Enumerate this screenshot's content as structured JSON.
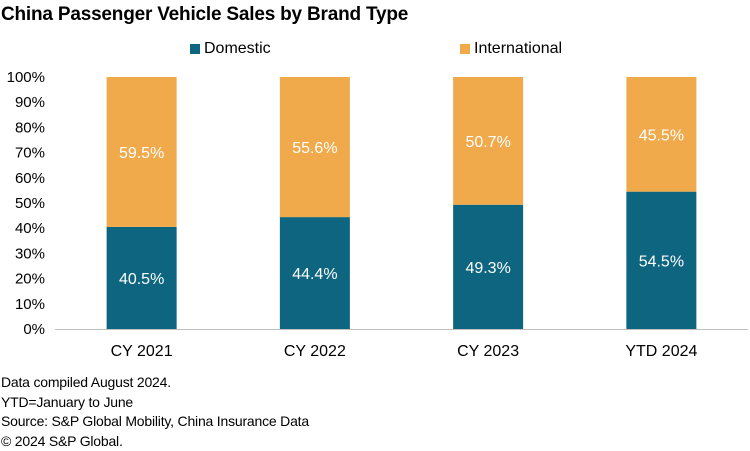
{
  "title": "China Passenger Vehicle Sales by Brand Type",
  "legend": [
    {
      "label": "Domestic",
      "color": "#0e6580"
    },
    {
      "label": "International",
      "color": "#f0a94b"
    }
  ],
  "chart_data": {
    "type": "bar",
    "stacked": true,
    "categories": [
      "CY 2021",
      "CY 2022",
      "CY 2023",
      "YTD 2024"
    ],
    "series": [
      {
        "name": "Domestic",
        "values": [
          40.5,
          44.4,
          49.3,
          54.5
        ],
        "labels": [
          "40.5%",
          "44.4%",
          "49.3%",
          "54.5%"
        ],
        "color": "#0e6580"
      },
      {
        "name": "International",
        "values": [
          59.5,
          55.6,
          50.7,
          45.5
        ],
        "labels": [
          "59.5%",
          "55.6%",
          "50.7%",
          "45.5%"
        ],
        "color": "#f0a94b"
      }
    ],
    "ylim": [
      0,
      100
    ],
    "yticks": [
      "0%",
      "10%",
      "20%",
      "30%",
      "40%",
      "50%",
      "60%",
      "70%",
      "80%",
      "90%",
      "100%"
    ],
    "xlabel": "",
    "ylabel": "",
    "grid": false,
    "legend_position": "top"
  },
  "notes": [
    "Data compiled August 2024.",
    "YTD=January to June",
    "Source: S&P Global Mobility, China Insurance Data",
    "© 2024 S&P Global."
  ]
}
